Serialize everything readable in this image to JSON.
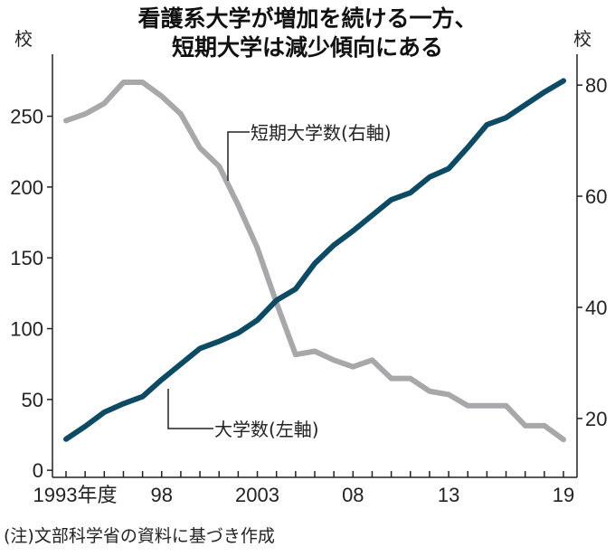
{
  "title_line1": "看護系大学が増加を続ける一方、",
  "title_line2": "短期大学は減少傾向にある",
  "note": "(注)文部科学省の資料に基づき作成",
  "chart_data": {
    "type": "line",
    "title": "看護系大学が増加を続ける一方、短期大学は減少傾向にある",
    "x": [
      1993,
      1994,
      1995,
      1996,
      1997,
      1998,
      1999,
      2000,
      2001,
      2002,
      2003,
      2004,
      2005,
      2006,
      2007,
      2008,
      2009,
      2010,
      2011,
      2012,
      2013,
      2014,
      2015,
      2016,
      2017,
      2018,
      2019
    ],
    "x_tick_labels": [
      "1993年度",
      "98",
      "2003",
      "08",
      "13",
      "19"
    ],
    "x_tick_values": [
      1993,
      1998,
      2003,
      2008,
      2013,
      2019
    ],
    "left_axis": {
      "unit_label": "校",
      "ticks": [
        0,
        50,
        100,
        150,
        200,
        250
      ],
      "range": [
        -5,
        281
      ]
    },
    "right_axis": {
      "unit_label": "校",
      "ticks": [
        20,
        40,
        60,
        80
      ],
      "range": [
        9.4,
        82.3
      ]
    },
    "series": [
      {
        "name": "大学数(左軸)",
        "axis": "left",
        "color": "#0d4a63",
        "values": [
          22,
          31,
          41,
          47,
          52,
          64,
          75,
          86,
          91,
          97,
          106,
          120,
          128,
          146,
          159,
          169,
          180,
          191,
          196,
          207,
          213,
          228,
          244,
          249,
          258,
          267,
          275
        ]
      },
      {
        "name": "短期大学数(右軸)",
        "axis": "right",
        "color": "#a8a8aa",
        "values": [
          73.6,
          74.8,
          76.7,
          80.5,
          80.5,
          78,
          74.8,
          68.7,
          65.4,
          58.4,
          50.7,
          40.8,
          31.5,
          32.1,
          30.5,
          29.3,
          30.5,
          27.2,
          27.2,
          24.9,
          24.3,
          22.3,
          22.3,
          22.3,
          18.7,
          18.7,
          16.2
        ]
      }
    ],
    "grid": false
  }
}
